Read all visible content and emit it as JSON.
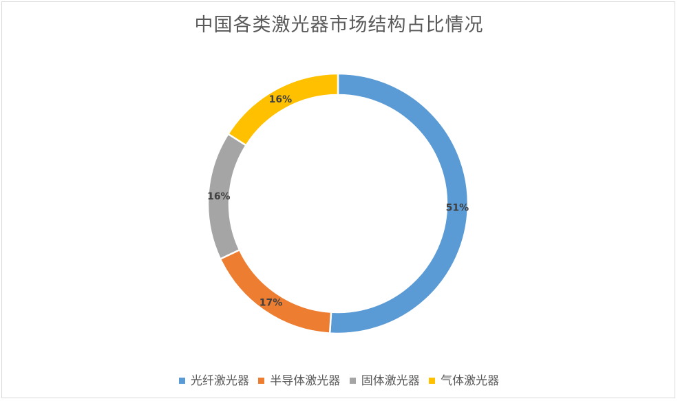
{
  "chart": {
    "title": "中国各类激光器市场结构占比情况"
  },
  "chart_data": {
    "type": "pie",
    "variant": "donut",
    "title": "中国各类激光器市场结构占比情况",
    "categories": [
      "光纤激光器",
      "半导体激光器",
      "固体激光器",
      "气体激光器"
    ],
    "values": [
      51,
      17,
      16,
      16
    ],
    "labels": [
      "51%",
      "17%",
      "16%",
      "16%"
    ],
    "colors": [
      "#5b9bd5",
      "#ed7d31",
      "#a5a5a5",
      "#ffc000"
    ],
    "legend_position": "bottom",
    "start_angle_deg": 0,
    "direction": "clockwise"
  },
  "legend": {
    "items": [
      {
        "label": "光纤激光器",
        "color": "#5b9bd5"
      },
      {
        "label": "半导体激光器",
        "color": "#ed7d31"
      },
      {
        "label": "固体激光器",
        "color": "#a5a5a5"
      },
      {
        "label": "气体激光器",
        "color": "#ffc000"
      }
    ]
  }
}
